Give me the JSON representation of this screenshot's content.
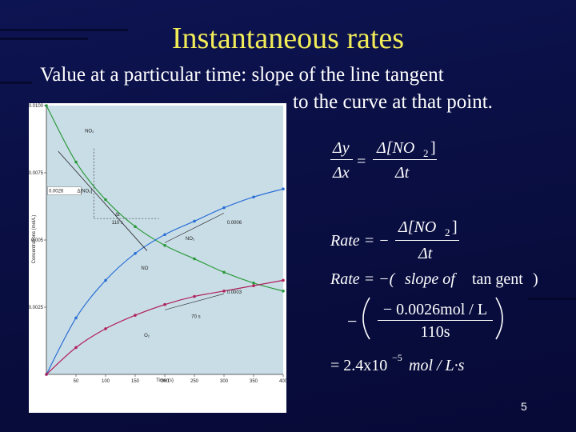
{
  "slide": {
    "title": "Instantaneous rates",
    "line1": "Value at a particular time:   slope of the line tangent",
    "line2": "to the curve at that point.",
    "page_number": "5"
  },
  "equations": {
    "dy": "Δy",
    "dx": "Δx",
    "eq": "=",
    "dno2": "Δ[NO",
    "sub2": "2",
    "close": "]",
    "dt": "Δt",
    "rate_lhs": "Rate = −",
    "rate_line2_a": "Rate = −(",
    "rate_line2_slope": "slope of",
    "rate_line2_tan": "tan gent",
    "rate_line2_close": ")",
    "neg": "−",
    "numerator": "− 0.0026mol / L",
    "denominator": "110s",
    "result_prefix": "= 2.4x10",
    "result_exp": "−5",
    "result_unit": "mol / L·s"
  },
  "chart_data": {
    "type": "line",
    "xlabel": "Time (s)",
    "ylabel": "Concentrations (mol/L)",
    "x_ticks": [
      "50",
      "100",
      "150",
      "200",
      "250",
      "300",
      "350",
      "400"
    ],
    "y_ticks": [
      "0.0025",
      "0.005",
      "0.0075",
      "0.0100"
    ],
    "xlim": [
      0,
      400
    ],
    "ylim": [
      0,
      0.01
    ],
    "series": [
      {
        "name": "NO2",
        "color": "#2a9a3a",
        "x": [
          0,
          50,
          100,
          150,
          200,
          250,
          300,
          350,
          400
        ],
        "y": [
          0.01,
          0.0079,
          0.0065,
          0.0055,
          0.0048,
          0.0043,
          0.0038,
          0.0034,
          0.0031
        ]
      },
      {
        "name": "NO",
        "color": "#2a6fd6",
        "x": [
          0,
          50,
          100,
          150,
          200,
          250,
          300,
          350,
          400
        ],
        "y": [
          0,
          0.0021,
          0.0035,
          0.0045,
          0.0052,
          0.0057,
          0.0062,
          0.0066,
          0.0069
        ]
      },
      {
        "name": "O2",
        "color": "#b0205a",
        "x": [
          0,
          50,
          100,
          150,
          200,
          250,
          300,
          350,
          400
        ],
        "y": [
          0,
          0.001,
          0.0017,
          0.0022,
          0.0026,
          0.0029,
          0.0031,
          0.0033,
          0.0035
        ]
      }
    ],
    "annotations": {
      "no2_label": "NO₂",
      "no_label": "NO",
      "o2_label": "O₂",
      "delta_no2": "Δ[NO₂]",
      "delta_no2_value": "0.0026",
      "delta_t": "Δt",
      "delta_t_value": "110 s",
      "no_tangent_value": "0.0006",
      "no_tangent_dt": "70 s",
      "o2_tangent_value": "0.0003",
      "o2_tangent_dt": "70 s"
    }
  }
}
